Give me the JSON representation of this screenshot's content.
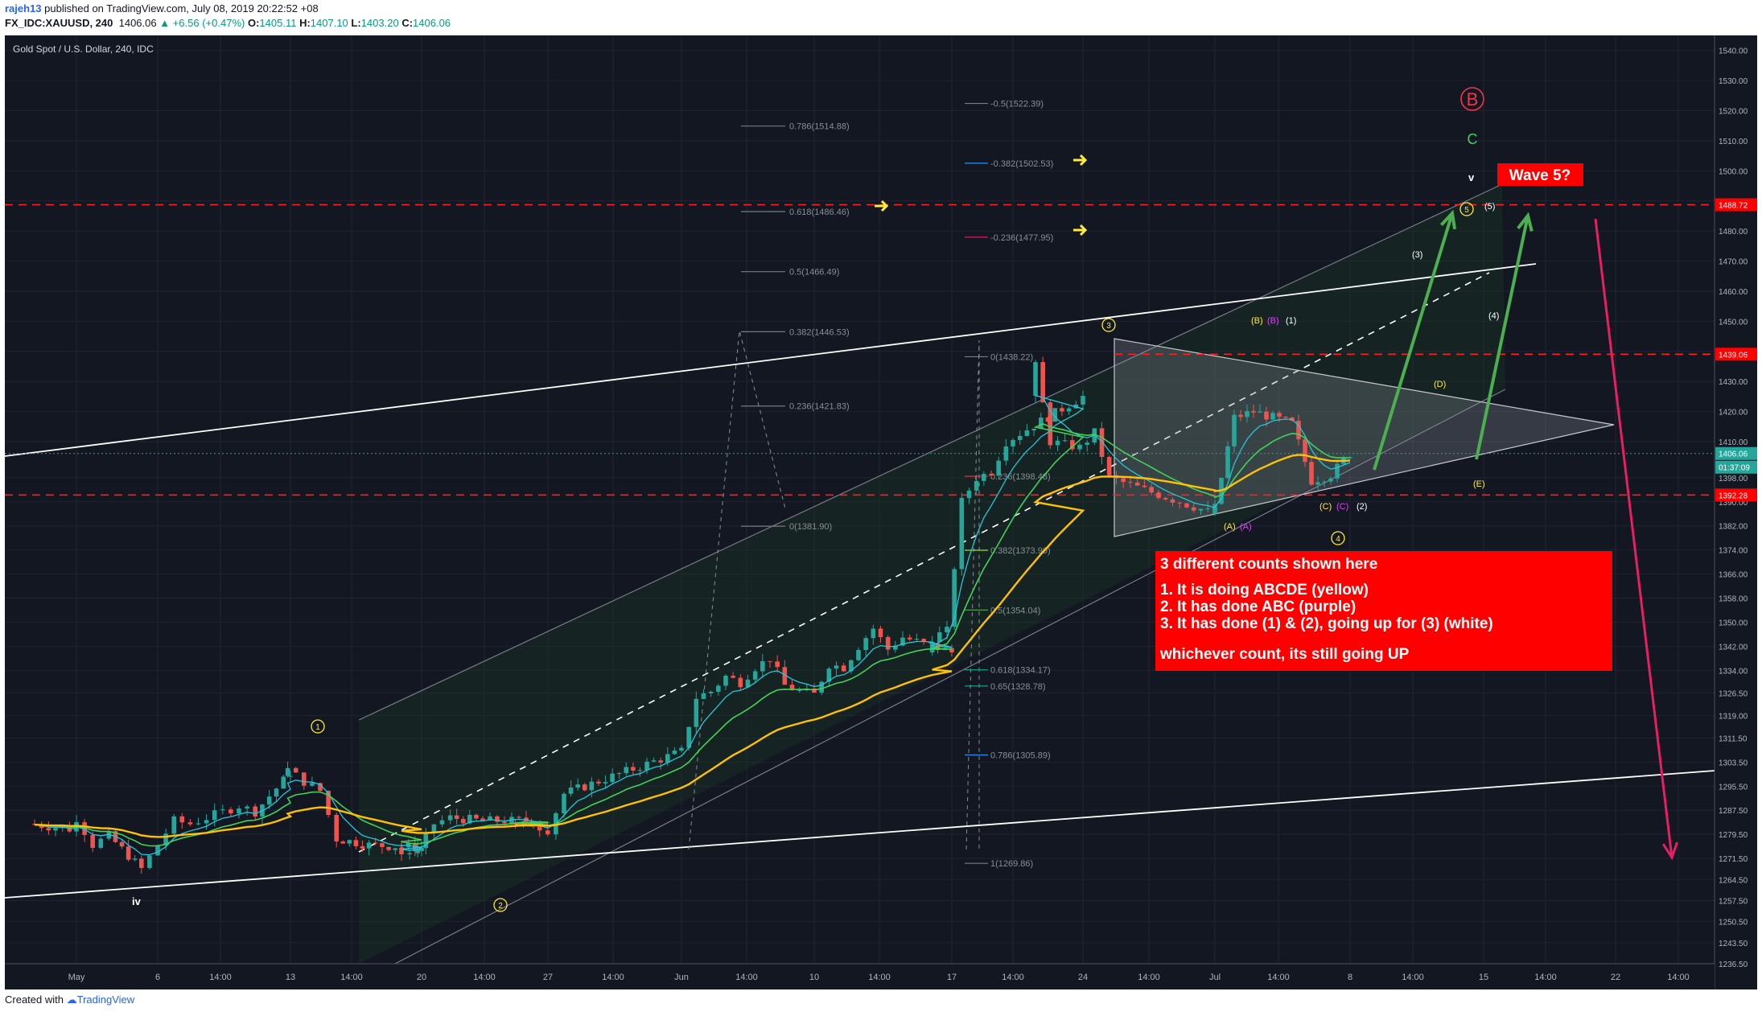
{
  "header": {
    "author": "rajeh13",
    "published_text": "published on TradingView.com, July 08, 2019 20:22:52 +08",
    "symbol": "FX_IDC:XAUUSD, 240",
    "last": "1406.06",
    "change": "▲ +6.56 (+0.47%)",
    "ohlc": {
      "o": "1405.11",
      "h": "1407.10",
      "l": "1403.20",
      "c": "1406.06"
    }
  },
  "footer": {
    "created_with": "Created with",
    "brand": "TradingView"
  },
  "chart": {
    "title": "Gold Spot / U.S. Dollar, 240, IDC",
    "colors": {
      "bg": "#131722",
      "bull": "#26a69a",
      "bear": "#ef5350",
      "ema_fast": "#26c6da",
      "ema_mid": "#43d15a",
      "ema_slow": "#ffc107",
      "ema_long": "#d32f2f",
      "text_box": "#ff0000"
    }
  },
  "chart_data": {
    "type": "candlestick",
    "title": "Gold Spot / U.S. Dollar, 240, IDC",
    "xlabel": "",
    "ylabel": "",
    "ylim": [
      1236.5,
      1545
    ],
    "x_ticks": [
      "May",
      "6",
      "14:00",
      "13",
      "14:00",
      "20",
      "14:00",
      "27",
      "14:00",
      "Jun",
      "14:00",
      "10",
      "14:00",
      "17",
      "14:00",
      "24",
      "14:00",
      "Jul",
      "14:00",
      "8",
      "14:00",
      "15",
      "14:00",
      "22",
      "14:00"
    ],
    "y_ticks": [
      1540.0,
      1530.0,
      1520.0,
      1510.0,
      1500.0,
      1490.0,
      1480.0,
      1470.0,
      1460.0,
      1450.0,
      1440.0,
      1430.0,
      1420.0,
      1410.0,
      1398.0,
      1390.0,
      1382.0,
      1374.0,
      1366.0,
      1358.0,
      1350.0,
      1342.0,
      1334.0,
      1326.5,
      1319.0,
      1311.5,
      1303.5,
      1295.5,
      1287.5,
      1279.5,
      1271.5,
      1264.5,
      1257.5,
      1250.5,
      1243.5,
      1236.5
    ],
    "price_tags": [
      {
        "value": "1488.72",
        "color": "#ff0000"
      },
      {
        "value": "1439.06",
        "color": "#ff0000"
      },
      {
        "value": "1406.06",
        "color": "#26a69a"
      },
      {
        "value": "01:37:09",
        "color": "#26a69a"
      },
      {
        "value": "1392.28",
        "color": "#ff0000"
      }
    ],
    "price_path": [
      [
        "May -2",
        1283
      ],
      [
        "May",
        1281
      ],
      [
        "May 1",
        1285
      ],
      [
        "May 2",
        1276
      ],
      [
        "May 3",
        1279
      ],
      [
        "May 5",
        1268
      ],
      [
        "May 6",
        1276
      ],
      [
        "May 7",
        1284
      ],
      [
        "May 8",
        1283
      ],
      [
        "May 9",
        1285
      ],
      [
        "May 10",
        1287
      ],
      [
        "May 11",
        1289
      ],
      [
        "May 12",
        1287
      ],
      [
        "May 13",
        1300
      ],
      [
        "May 14",
        1301
      ],
      [
        "May 15",
        1297
      ],
      [
        "May 16",
        1294
      ],
      [
        "May 17",
        1278
      ],
      [
        "May 19",
        1276
      ],
      [
        "May 20",
        1275
      ],
      [
        "May 21",
        1273
      ],
      [
        "May 22",
        1274
      ],
      [
        "May 23",
        1283
      ],
      [
        "May 24",
        1285
      ],
      [
        "May 26",
        1284
      ],
      [
        "May 27",
        1284
      ],
      [
        "May 28",
        1282
      ],
      [
        "May 29",
        1283
      ],
      [
        "May 30",
        1281
      ],
      [
        "May 31",
        1293
      ],
      [
        "Jun",
        1307
      ],
      [
        "Jun 2",
        1325
      ],
      [
        "Jun 3",
        1327
      ],
      [
        "Jun 4",
        1332
      ],
      [
        "Jun 5",
        1330
      ],
      [
        "Jun 6",
        1335
      ],
      [
        "Jun 7",
        1338
      ],
      [
        "Jun 8",
        1329
      ],
      [
        "Jun 9",
        1327
      ],
      [
        "Jun 10",
        1326
      ],
      [
        "Jun 11",
        1336
      ],
      [
        "Jun 12",
        1335
      ],
      [
        "Jun 13",
        1342
      ],
      [
        "Jun 14",
        1348
      ],
      [
        "Jun 15",
        1341
      ],
      [
        "Jun 16",
        1345
      ],
      [
        "Jun 17",
        1340
      ],
      [
        "Jun 18",
        1345
      ],
      [
        "Jun 19",
        1347
      ],
      [
        "Jun 20",
        1390
      ],
      [
        "Jun 21",
        1398
      ],
      [
        "Jun 22",
        1400
      ],
      [
        "Jun 23",
        1410
      ],
      [
        "Jun 24",
        1425
      ],
      [
        "Jun 25",
        1435
      ],
      [
        "Jun 26",
        1410
      ],
      [
        "Jun 27",
        1409
      ],
      [
        "Jun 28",
        1408
      ],
      [
        "Jun 29",
        1413
      ],
      [
        "Jun 30",
        1398
      ],
      [
        "Jul",
        1386
      ],
      [
        "Jul 1",
        1388
      ],
      [
        "Jul 2",
        1418
      ],
      [
        "Jul 3",
        1420
      ],
      [
        "Jul 4",
        1418
      ],
      [
        "Jul 5",
        1416
      ],
      [
        "Jul 6",
        1397
      ],
      [
        "Jul 7",
        1399
      ],
      [
        "Jul 8",
        1406.06
      ]
    ],
    "indicators": [
      {
        "name": "EMA fast",
        "color": "#26c6da"
      },
      {
        "name": "EMA mid",
        "color": "#43d15a"
      },
      {
        "name": "EMA slow",
        "color": "#ffc107"
      },
      {
        "name": "EMA long",
        "color": "#d32f2f"
      }
    ],
    "horizontal_lines": [
      1488.72,
      1439.06,
      1392.28
    ],
    "fib_retracement_1": [
      "0.786(1514.88)",
      "0.618(1486.46)",
      "0.5(1466.49)",
      "0.382(1446.53)",
      "0.236(1421.83)",
      "0(1381.90)"
    ],
    "fib_retracement_2": [
      "-0.5(1522.39)",
      "-0.382(1502.53)",
      "-0.236(1477.95)",
      "0(1438.22)",
      "0.236(1398.48)",
      "0.382(1373.90)",
      "0.5(1354.04)",
      "0.618(1334.17)",
      "0.65(1328.78)",
      "0.786(1305.89)",
      "1(1269.86)"
    ],
    "wave_labels": {
      "circled": [
        "1",
        "2",
        "3",
        "4",
        "5"
      ],
      "roman": [
        "iv",
        "v"
      ],
      "yellow": [
        "(A)",
        "(B)",
        "(C)",
        "(D)",
        "(E)"
      ],
      "purple": [
        "(A)",
        "(B)",
        "(C)"
      ],
      "white": [
        "(1)",
        "(2)",
        "(3)",
        "(4)",
        "(5)"
      ],
      "big_B": "B",
      "big_C": "C"
    },
    "annotation_wave5": "Wave 5?",
    "text_box_lines": [
      "3 different counts shown here",
      "",
      "1. It is doing ABCDE (yellow)",
      "2. It has done ABC (purple)",
      "3. It has done (1) & (2), going up for (3) (white)",
      "",
      "whichever count, its still going UP"
    ]
  }
}
